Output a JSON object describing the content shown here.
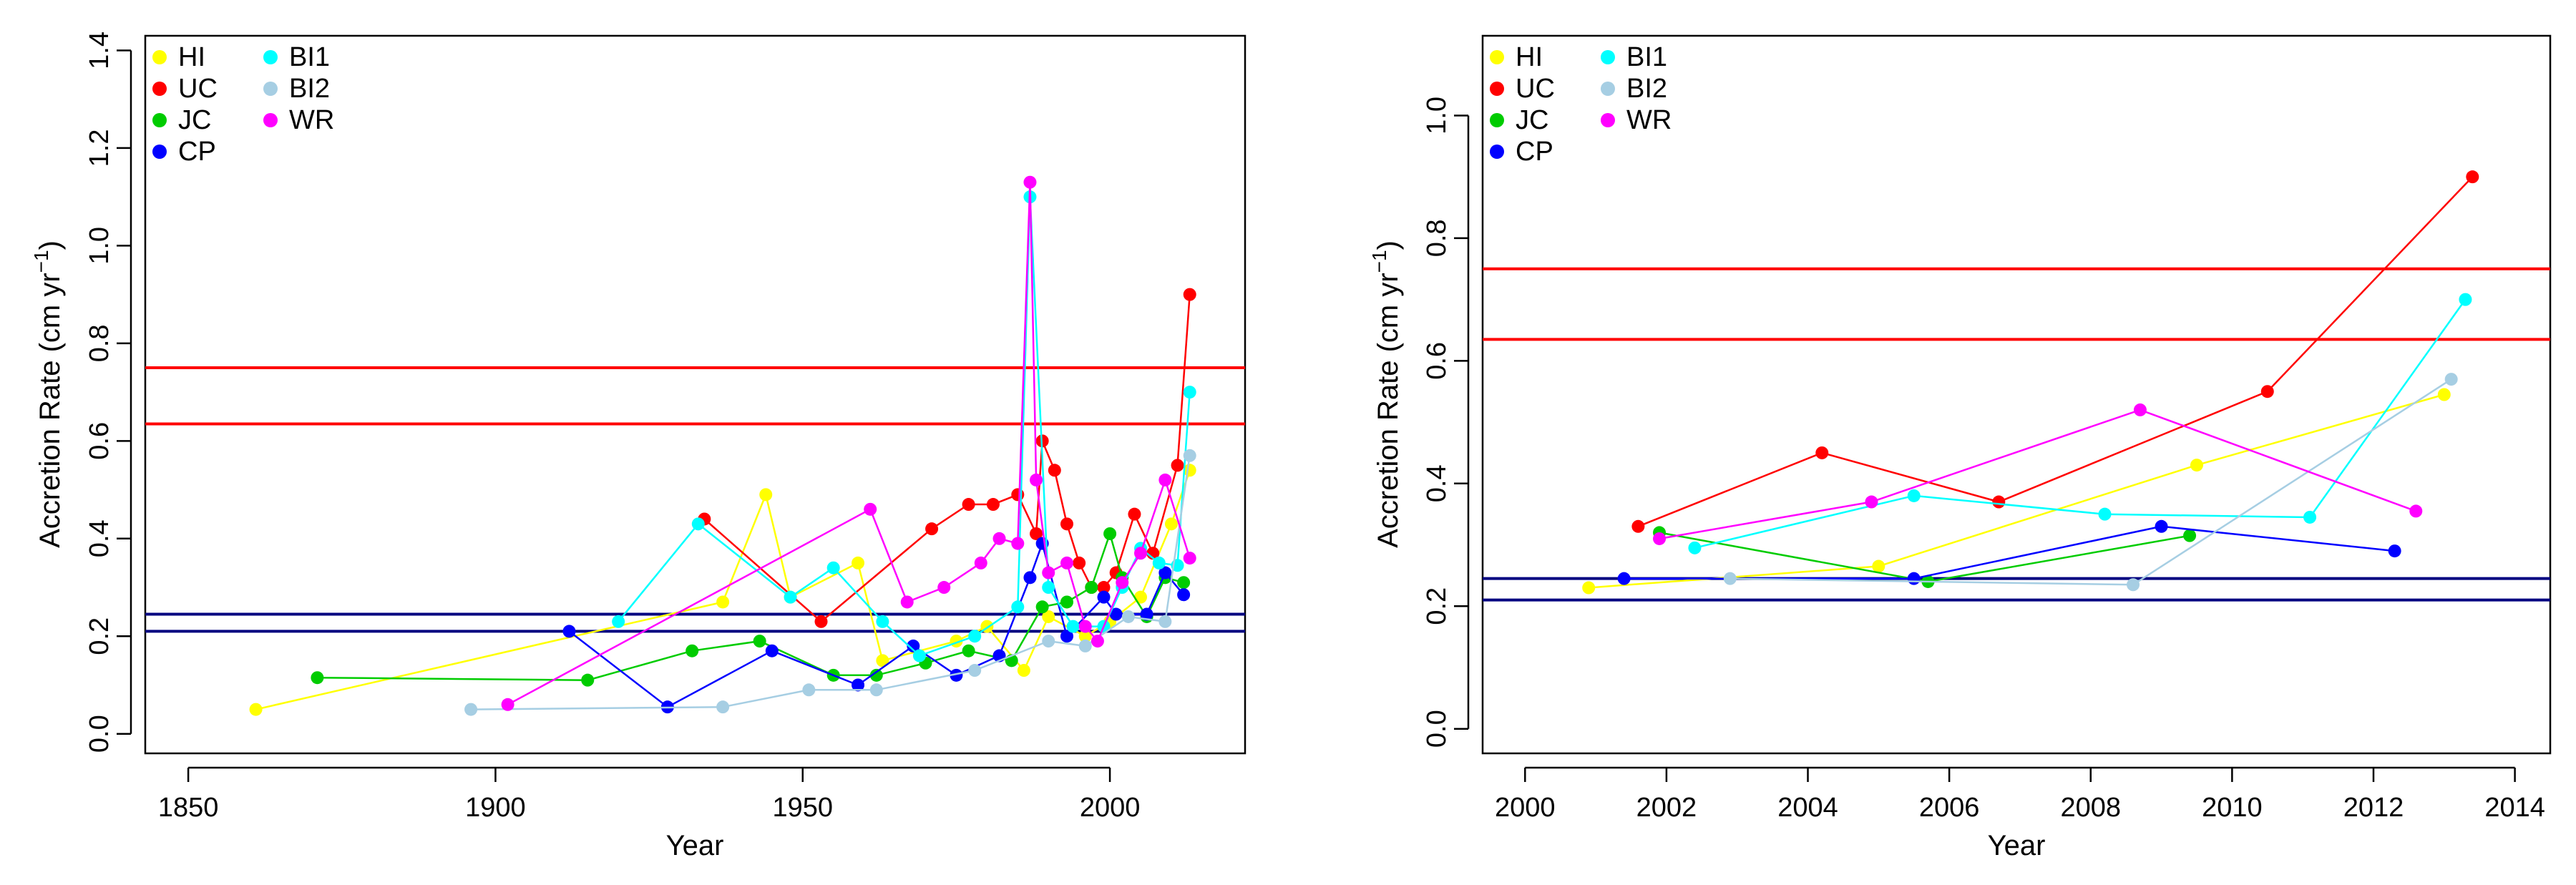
{
  "colors": {
    "HI": "#ffff00",
    "UC": "#ff0000",
    "JC": "#00cc00",
    "CP": "#0000ff",
    "BI1": "#00ffff",
    "BI2": "#a6cee3",
    "WR": "#ff00ff",
    "ref_red": "#ff0000",
    "ref_navy": "#000080"
  },
  "chart_data": [
    {
      "type": "line",
      "xlabel": "Year",
      "ylabel": "Accretion Rate (cm yr",
      "ylabel_sup": "−1",
      "ylabel_close": ")",
      "xlim": [
        1843,
        2022
      ],
      "ylim": [
        -0.04,
        1.43
      ],
      "xticks": [
        1850,
        1900,
        1950,
        2000
      ],
      "yticks": [
        0.0,
        0.2,
        0.4,
        0.6,
        0.8,
        1.0,
        1.2,
        1.4
      ],
      "ytick_labels": [
        "0.0",
        "0.2",
        "0.4",
        "0.6",
        "0.8",
        "1.0",
        "1.2",
        "1.4"
      ],
      "legend": {
        "placement": "top-left",
        "columns": [
          [
            "HI",
            "UC",
            "JC",
            "CP"
          ],
          [
            "BI1",
            "BI2",
            "WR"
          ]
        ]
      },
      "reference_lines": [
        {
          "y": 0.75,
          "color": "ref_red"
        },
        {
          "y": 0.635,
          "color": "ref_red"
        },
        {
          "y": 0.245,
          "color": "ref_navy"
        },
        {
          "y": 0.21,
          "color": "ref_navy"
        }
      ],
      "series": [
        {
          "name": "HI",
          "x": [
            1861,
            1937,
            1944,
            1948,
            1959,
            1963,
            1975,
            1980,
            1986,
            1990,
            1996,
            2000,
            2005,
            2010,
            2013
          ],
          "y": [
            0.05,
            0.27,
            0.49,
            0.28,
            0.35,
            0.15,
            0.19,
            0.22,
            0.13,
            0.24,
            0.2,
            0.23,
            0.28,
            0.43,
            0.54
          ]
        },
        {
          "name": "UC",
          "x": [
            1934,
            1953,
            1971,
            1977,
            1981,
            1985,
            1988,
            1989,
            1991,
            1993,
            1995,
            1997,
            1999,
            2001,
            2004,
            2007,
            2011,
            2013
          ],
          "y": [
            0.44,
            0.23,
            0.42,
            0.47,
            0.47,
            0.49,
            0.41,
            0.6,
            0.54,
            0.43,
            0.35,
            0.3,
            0.3,
            0.33,
            0.45,
            0.37,
            0.55,
            0.9
          ]
        },
        {
          "name": "JC",
          "x": [
            1871,
            1915,
            1932,
            1943,
            1955,
            1962,
            1970,
            1977,
            1984,
            1989,
            1993,
            1997,
            2000,
            2002,
            2006,
            2009,
            2012
          ],
          "y": [
            0.115,
            0.11,
            0.17,
            0.19,
            0.12,
            0.12,
            0.145,
            0.17,
            0.15,
            0.26,
            0.27,
            0.3,
            0.41,
            0.32,
            0.24,
            0.32,
            0.31
          ]
        },
        {
          "name": "CP",
          "x": [
            1912,
            1928,
            1945,
            1959,
            1968,
            1975,
            1982,
            1987,
            1989,
            1993,
            1999,
            2001,
            2006,
            2009,
            2012
          ],
          "y": [
            0.21,
            0.055,
            0.17,
            0.1,
            0.18,
            0.12,
            0.16,
            0.32,
            0.39,
            0.2,
            0.28,
            0.245,
            0.245,
            0.33,
            0.285
          ]
        },
        {
          "name": "BI1",
          "x": [
            1920,
            1933,
            1948,
            1955,
            1963,
            1969,
            1978,
            1985,
            1987,
            1990,
            1994,
            1999,
            2002,
            2005,
            2008,
            2011,
            2013
          ],
          "y": [
            0.23,
            0.43,
            0.28,
            0.34,
            0.23,
            0.16,
            0.2,
            0.26,
            1.1,
            0.3,
            0.22,
            0.22,
            0.3,
            0.38,
            0.35,
            0.345,
            0.7
          ]
        },
        {
          "name": "BI2",
          "x": [
            1896,
            1937,
            1951,
            1962,
            1978,
            1990,
            1996,
            2003,
            2009,
            2013
          ],
          "y": [
            0.05,
            0.055,
            0.09,
            0.09,
            0.13,
            0.19,
            0.18,
            0.24,
            0.23,
            0.57
          ]
        },
        {
          "name": "WR",
          "x": [
            1902,
            1961,
            1967,
            1973,
            1979,
            1982,
            1985,
            1987,
            1988,
            1990,
            1993,
            1996,
            1998,
            2002,
            2005,
            2009,
            2013
          ],
          "y": [
            0.06,
            0.46,
            0.27,
            0.3,
            0.35,
            0.4,
            0.39,
            1.13,
            0.52,
            0.33,
            0.35,
            0.22,
            0.19,
            0.31,
            0.37,
            0.52,
            0.36
          ]
        }
      ]
    },
    {
      "type": "line",
      "xlabel": "Year",
      "ylabel": "Accretion Rate (cm yr",
      "ylabel_sup": "−1",
      "ylabel_close": ")",
      "xlim": [
        1999.4,
        2014.5
      ],
      "ylim": [
        -0.04,
        1.13
      ],
      "xticks": [
        2000,
        2002,
        2004,
        2006,
        2008,
        2010,
        2012,
        2014
      ],
      "yticks": [
        0.0,
        0.2,
        0.4,
        0.6,
        0.8,
        1.0
      ],
      "ytick_labels": [
        "0.0",
        "0.2",
        "0.4",
        "0.6",
        "0.8",
        "1.0"
      ],
      "legend": {
        "placement": "top-left",
        "columns": [
          [
            "HI",
            "UC",
            "JC",
            "CP"
          ],
          [
            "BI1",
            "BI2",
            "WR"
          ]
        ]
      },
      "reference_lines": [
        {
          "y": 0.75,
          "color": "ref_red"
        },
        {
          "y": 0.635,
          "color": "ref_red"
        },
        {
          "y": 0.245,
          "color": "ref_navy"
        },
        {
          "y": 0.21,
          "color": "ref_navy"
        }
      ],
      "series": [
        {
          "name": "HI",
          "x": [
            2000.9,
            2005,
            2009.5,
            2013.0
          ],
          "y": [
            0.23,
            0.265,
            0.43,
            0.545
          ]
        },
        {
          "name": "UC",
          "x": [
            2001.6,
            2004.2,
            2006.7,
            2010.5,
            2013.4
          ],
          "y": [
            0.33,
            0.45,
            0.37,
            0.55,
            0.9
          ]
        },
        {
          "name": "JC",
          "x": [
            2001.9,
            2005.7,
            2009.4
          ],
          "y": [
            0.32,
            0.24,
            0.315
          ]
        },
        {
          "name": "CP",
          "x": [
            2001.4,
            2005.5,
            2009.0,
            2012.3
          ],
          "y": [
            0.245,
            0.245,
            0.33,
            0.29
          ]
        },
        {
          "name": "BI1",
          "x": [
            2002.4,
            2005.5,
            2008.2,
            2011.1,
            2013.3
          ],
          "y": [
            0.295,
            0.38,
            0.35,
            0.345,
            0.7
          ]
        },
        {
          "name": "BI2",
          "x": [
            2002.9,
            2008.6,
            2013.1
          ],
          "y": [
            0.245,
            0.235,
            0.57
          ]
        },
        {
          "name": "WR",
          "x": [
            2001.9,
            2004.9,
            2008.7,
            2012.6
          ],
          "y": [
            0.31,
            0.37,
            0.52,
            0.355
          ]
        }
      ]
    }
  ]
}
